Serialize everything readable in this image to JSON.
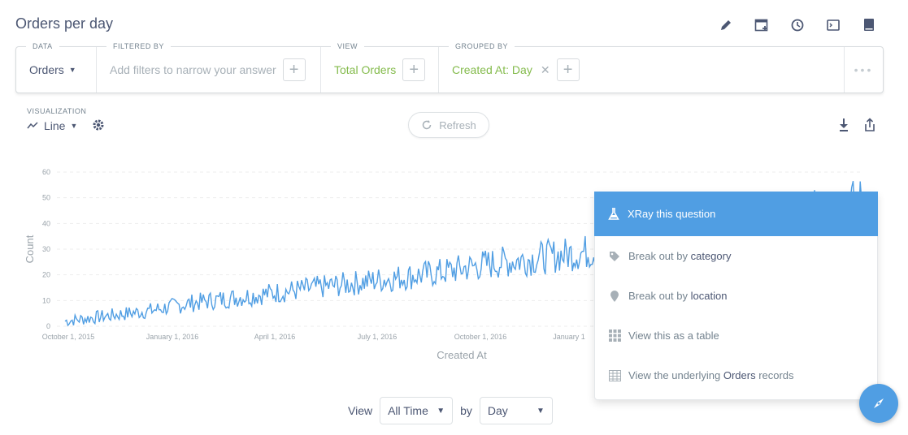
{
  "page": {
    "title": "Orders per day"
  },
  "header_icons": [
    "pencil-icon",
    "add-to-dashboard-icon",
    "history-icon",
    "sql-console-icon",
    "bookmark-icon"
  ],
  "query_builder": {
    "data": {
      "caption": "DATA",
      "value": "Orders"
    },
    "filter": {
      "caption": "FILTERED BY",
      "placeholder": "Add filters to narrow your answer"
    },
    "view": {
      "caption": "VIEW",
      "value": "Total Orders"
    },
    "group": {
      "caption": "GROUPED BY",
      "value": "Created At: Day"
    }
  },
  "visualization": {
    "caption": "VISUALIZATION",
    "type": "Line"
  },
  "refresh": {
    "label": "Refresh"
  },
  "chart_data": {
    "type": "line",
    "xlabel": "Created At",
    "ylabel": "Count",
    "ylim": [
      0,
      60
    ],
    "y_ticks": [
      0,
      10,
      20,
      30,
      40,
      50,
      60
    ],
    "x_ticks": [
      "October 1, 2015",
      "January 1, 2016",
      "April 1, 2016",
      "July 1, 2016",
      "October 1, 2016",
      "January 1"
    ],
    "grid": true,
    "color": "#509ee3",
    "series": [
      {
        "x": [
          "2015-09",
          "2015-10",
          "2015-11",
          "2015-12",
          "2016-01",
          "2016-02",
          "2016-03",
          "2016-04",
          "2016-05",
          "2016-06",
          "2016-07",
          "2016-08",
          "2016-09",
          "2016-10",
          "2016-11",
          "2016-12",
          "2017-01",
          "2017-02",
          "2017-03",
          "2017-04"
        ],
        "y": [
          2,
          4,
          6,
          9,
          11,
          13,
          15,
          17,
          19,
          21,
          24,
          26,
          28,
          30,
          32,
          34,
          36,
          40,
          44,
          48
        ]
      }
    ]
  },
  "popover": {
    "items": [
      {
        "icon": "beaker-icon",
        "label": "XRay this question",
        "bold": ""
      },
      {
        "icon": "tag-icon",
        "label": "Break out by ",
        "bold": "category"
      },
      {
        "icon": "pin-icon",
        "label": "Break out by ",
        "bold": "location"
      },
      {
        "icon": "grid-icon",
        "label": "View this as a table",
        "bold": ""
      },
      {
        "icon": "table-icon",
        "label": "View the underlying ",
        "bold": "Orders",
        "suffix": " records"
      }
    ]
  },
  "bottom": {
    "view_label": "View",
    "time_range": "All Time",
    "by_label": "by",
    "granularity": "Day"
  },
  "colors": {
    "brand": "#509ee3",
    "green": "#84bb4c",
    "text": "#4c5773"
  }
}
